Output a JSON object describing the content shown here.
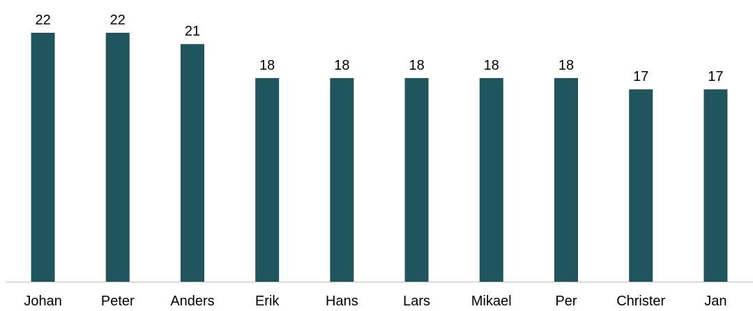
{
  "chart_data": {
    "type": "bar",
    "categories": [
      "Johan",
      "Peter",
      "Anders",
      "Erik",
      "Hans",
      "Lars",
      "Mikael",
      "Per",
      "Christer",
      "Jan"
    ],
    "values": [
      22,
      22,
      21,
      18,
      18,
      18,
      18,
      18,
      17,
      17
    ],
    "title": "",
    "xlabel": "",
    "ylabel": "",
    "ylim": [
      0,
      22
    ],
    "grid": false,
    "legend": "none",
    "data_labels": true,
    "colors": {
      "bar": "#20555e",
      "axis": "#bfbfbf",
      "text": "#000000"
    }
  }
}
